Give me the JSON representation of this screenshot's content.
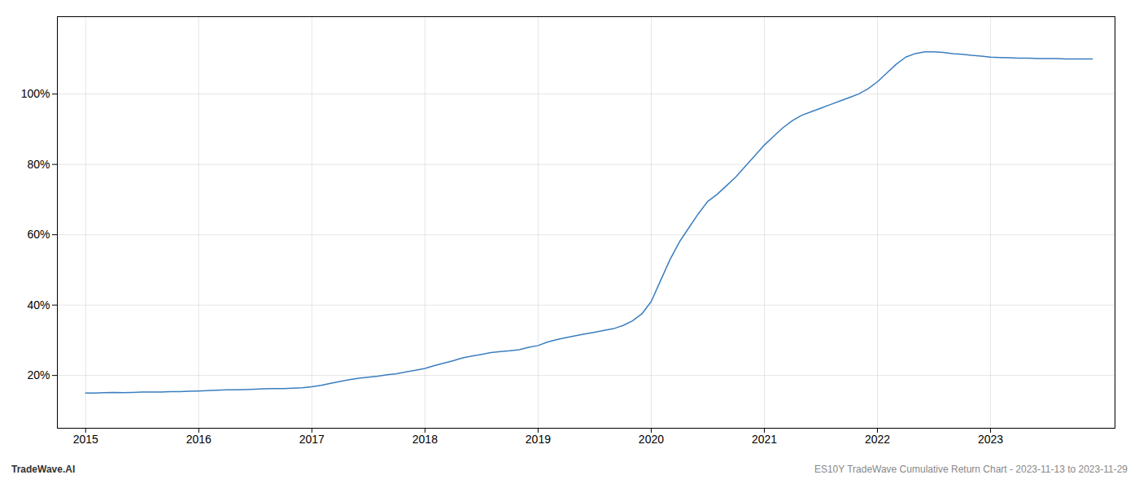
{
  "chart_data": {
    "type": "line",
    "x": [
      2015.0,
      2015.083,
      2015.167,
      2015.25,
      2015.333,
      2015.417,
      2015.5,
      2015.583,
      2015.667,
      2015.75,
      2015.833,
      2015.917,
      2016.0,
      2016.083,
      2016.167,
      2016.25,
      2016.333,
      2016.417,
      2016.5,
      2016.583,
      2016.667,
      2016.75,
      2016.833,
      2016.917,
      2017.0,
      2017.083,
      2017.167,
      2017.25,
      2017.333,
      2017.417,
      2017.5,
      2017.583,
      2017.667,
      2017.75,
      2017.833,
      2017.917,
      2018.0,
      2018.083,
      2018.167,
      2018.25,
      2018.333,
      2018.417,
      2018.5,
      2018.583,
      2018.667,
      2018.75,
      2018.833,
      2018.917,
      2019.0,
      2019.083,
      2019.167,
      2019.25,
      2019.333,
      2019.417,
      2019.5,
      2019.583,
      2019.667,
      2019.75,
      2019.833,
      2019.917,
      2020.0,
      2020.083,
      2020.167,
      2020.25,
      2020.333,
      2020.417,
      2020.5,
      2020.583,
      2020.667,
      2020.75,
      2020.833,
      2020.917,
      2021.0,
      2021.083,
      2021.167,
      2021.25,
      2021.333,
      2021.417,
      2021.5,
      2021.583,
      2021.667,
      2021.75,
      2021.833,
      2021.917,
      2022.0,
      2022.083,
      2022.167,
      2022.25,
      2022.333,
      2022.417,
      2022.5,
      2022.583,
      2022.667,
      2022.75,
      2022.833,
      2022.917,
      2023.0,
      2023.083,
      2023.167,
      2023.25,
      2023.333,
      2023.417,
      2023.5,
      2023.583,
      2023.667,
      2023.75,
      2023.83,
      2023.9
    ],
    "values": [
      15.0,
      15.0,
      15.1,
      15.2,
      15.1,
      15.2,
      15.3,
      15.3,
      15.3,
      15.4,
      15.4,
      15.5,
      15.6,
      15.7,
      15.8,
      15.9,
      15.9,
      16.0,
      16.1,
      16.2,
      16.3,
      16.3,
      16.4,
      16.5,
      16.8,
      17.2,
      17.8,
      18.3,
      18.8,
      19.2,
      19.5,
      19.8,
      20.2,
      20.5,
      21.0,
      21.5,
      22.0,
      22.8,
      23.5,
      24.2,
      25.0,
      25.5,
      26.0,
      26.5,
      26.8,
      27.0,
      27.3,
      28.0,
      28.5,
      29.5,
      30.2,
      30.8,
      31.3,
      31.8,
      32.3,
      32.8,
      33.3,
      34.2,
      35.5,
      37.5,
      41.0,
      47.0,
      53.0,
      58.0,
      62.0,
      66.0,
      69.5,
      71.5,
      74.0,
      76.5,
      79.5,
      82.5,
      85.5,
      88.0,
      90.5,
      92.5,
      94.0,
      95.0,
      96.0,
      97.0,
      98.0,
      99.0,
      100.0,
      101.5,
      103.5,
      106.0,
      108.5,
      110.5,
      111.5,
      112.0,
      112.0,
      111.8,
      111.5,
      111.3,
      111.0,
      110.8,
      110.5,
      110.4,
      110.3,
      110.2,
      110.2,
      110.1,
      110.1,
      110.1,
      110.0,
      110.0,
      110.0,
      110.0
    ],
    "color": "#3a7ebf",
    "xlim": [
      2014.75,
      2024.1
    ],
    "ylim": [
      5,
      122
    ],
    "xticks": [
      2015,
      2016,
      2017,
      2018,
      2019,
      2020,
      2021,
      2022,
      2023
    ],
    "yticks": [
      {
        "value": 20,
        "label": "20%"
      },
      {
        "value": 40,
        "label": "40%"
      },
      {
        "value": 60,
        "label": "60%"
      },
      {
        "value": 80,
        "label": "80%"
      },
      {
        "value": 100,
        "label": "100%"
      }
    ],
    "grid": true,
    "annotations": [
      "TradeWave.AI",
      "ES10Y TradeWave Cumulative Return Chart - 2023-11-13 to 2023-11-29"
    ]
  }
}
